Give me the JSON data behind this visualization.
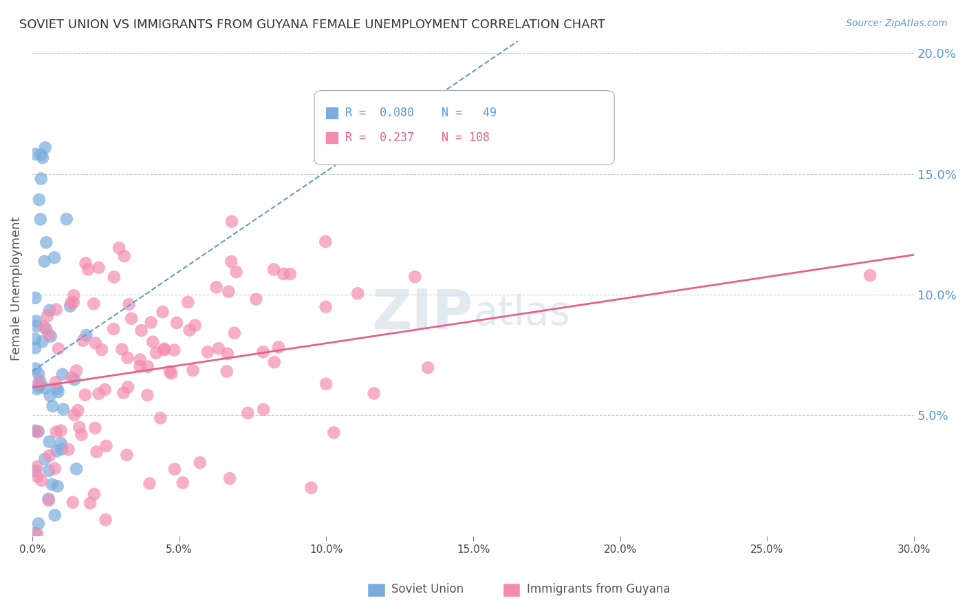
{
  "title": "SOVIET UNION VS IMMIGRANTS FROM GUYANA FEMALE UNEMPLOYMENT CORRELATION CHART",
  "source": "Source: ZipAtlas.com",
  "ylabel": "Female Unemployment",
  "xmin": 0.0,
  "xmax": 0.3,
  "ymin": 0.0,
  "ymax": 0.205,
  "xticks": [
    0.0,
    0.05,
    0.1,
    0.15,
    0.2,
    0.25,
    0.3
  ],
  "yticks_right": [
    0.05,
    0.1,
    0.15,
    0.2
  ],
  "blue_label": "Soviet Union",
  "pink_label": "Immigrants from Guyana",
  "blue_R": 0.08,
  "blue_N": 49,
  "pink_R": 0.237,
  "pink_N": 108,
  "blue_color": "#7aadde",
  "pink_color": "#f48cb0",
  "blue_line_color": "#6699cc",
  "pink_line_color": "#e8608a",
  "grid_color": "#cccccc",
  "background_color": "#ffffff",
  "title_color": "#333333",
  "axis_label_color": "#555555",
  "right_tick_color": "#5599dd",
  "watermark_color": "#d0dce8"
}
